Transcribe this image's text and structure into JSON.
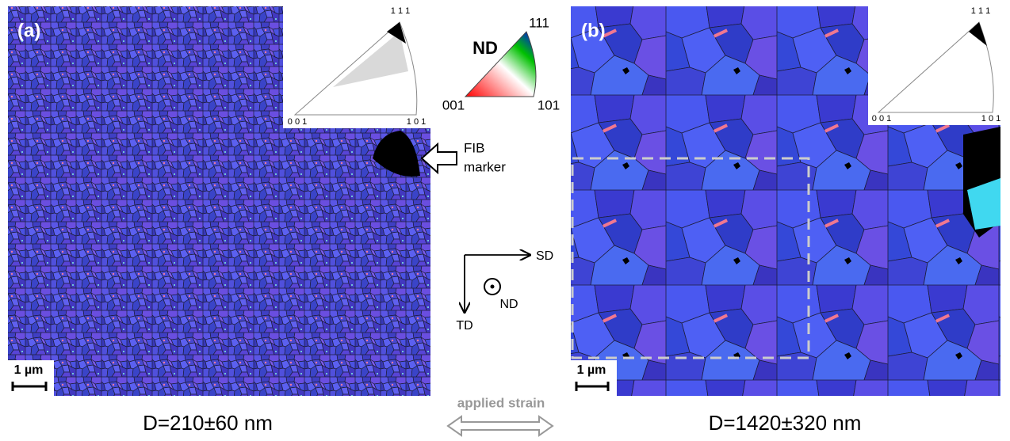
{
  "panels": [
    {
      "label": "(a)",
      "ipf": {
        "top": "1 1 1",
        "left": "0 0 1",
        "right": "1 0 1"
      },
      "scale_bar": "1 µm",
      "caption": "D=210±60 nm"
    },
    {
      "label": "(b)",
      "ipf": {
        "top": "1 1 1",
        "left": "0 0 1",
        "right": "1 0 1"
      },
      "scale_bar": "1 µm",
      "caption": "D=1420±320 nm"
    }
  ],
  "color_key": {
    "title": "ND",
    "top": "111",
    "left": "001",
    "right": "101"
  },
  "fib_marker": [
    "FIB",
    "marker"
  ],
  "axes": {
    "sd": "SD",
    "td": "TD",
    "nd": "ND"
  },
  "strain_label": "applied strain"
}
